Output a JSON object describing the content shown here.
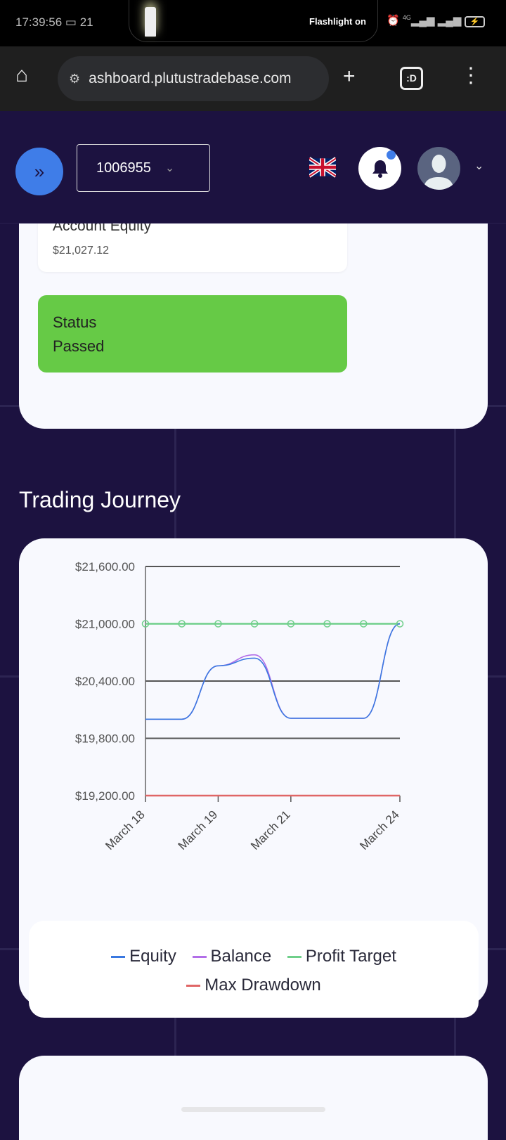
{
  "status_bar": {
    "time": "17:39:56",
    "notification_count": "21",
    "flashlight_text": "Flashlight on",
    "network": "4G"
  },
  "browser": {
    "url": "ashboard.plutustradebase.com"
  },
  "header": {
    "account_number": "1006955",
    "language": "English (UK)"
  },
  "account_card": {
    "equity_label": "Account Equity",
    "equity_value": "$21,027.12",
    "status_label": "Status",
    "status_value": "Passed",
    "status_color": "#66ca46"
  },
  "section_title": "Trading Journey",
  "chart_data": {
    "type": "line",
    "x": [
      "March 18",
      "",
      "March 19",
      "",
      "March 21",
      "",
      "",
      "March 24"
    ],
    "x_tick_labels": [
      "March 18",
      "March 19",
      "March 21",
      "March 24"
    ],
    "y_tick_labels": [
      "$21,600.00",
      "$21,000.00",
      "$20,400.00",
      "$19,800.00",
      "$19,200.00"
    ],
    "y_ticks": [
      21600,
      21000,
      20400,
      19800,
      19200
    ],
    "ylim": [
      19200,
      21600
    ],
    "grid": true,
    "legend_position": "bottom",
    "series": [
      {
        "name": "Equity",
        "color": "#3a78e0",
        "values": [
          20000,
          20000,
          20560,
          20640,
          20010,
          20010,
          20010,
          21000
        ]
      },
      {
        "name": "Balance",
        "color": "#b26ee8",
        "values": [
          20000,
          20000,
          20560,
          20675,
          20010,
          20010,
          20010,
          21000
        ]
      },
      {
        "name": "Profit Target",
        "color": "#6fcf8a",
        "values": [
          21000,
          21000,
          21000,
          21000,
          21000,
          21000,
          21000,
          21000
        ]
      },
      {
        "name": "Max Drawdown",
        "color": "#e06666",
        "values": [
          19200,
          19200,
          19200,
          19200,
          19200,
          19200,
          19200,
          19200
        ]
      }
    ]
  }
}
